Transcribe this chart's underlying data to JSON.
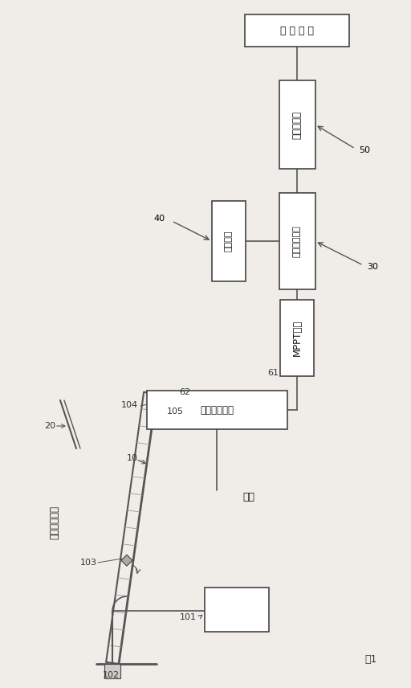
{
  "bg_color": "#f0ede8",
  "box_color": "#ffffff",
  "box_edge": "#444444",
  "line_color": "#555555",
  "load_label": "接 载 负 载",
  "inverter_label": "光伏逆变器",
  "charge_ctrl_label": "充放电控制器",
  "battery_label": "蓄电池组",
  "mppt_label": "MPPT装置",
  "acdc_label": "交直流控制器",
  "solar_label": "太阳能电池板",
  "grid_label": "电网",
  "fig_label": "图1",
  "ref_50": "50",
  "ref_40": "40",
  "ref_30": "30",
  "ref_61": "61",
  "ref_62": "62",
  "ref_10": "10",
  "ref_20": "20",
  "ref_101": "101",
  "ref_102": "102",
  "ref_103": "103",
  "ref_104": "104",
  "ref_105": "105"
}
